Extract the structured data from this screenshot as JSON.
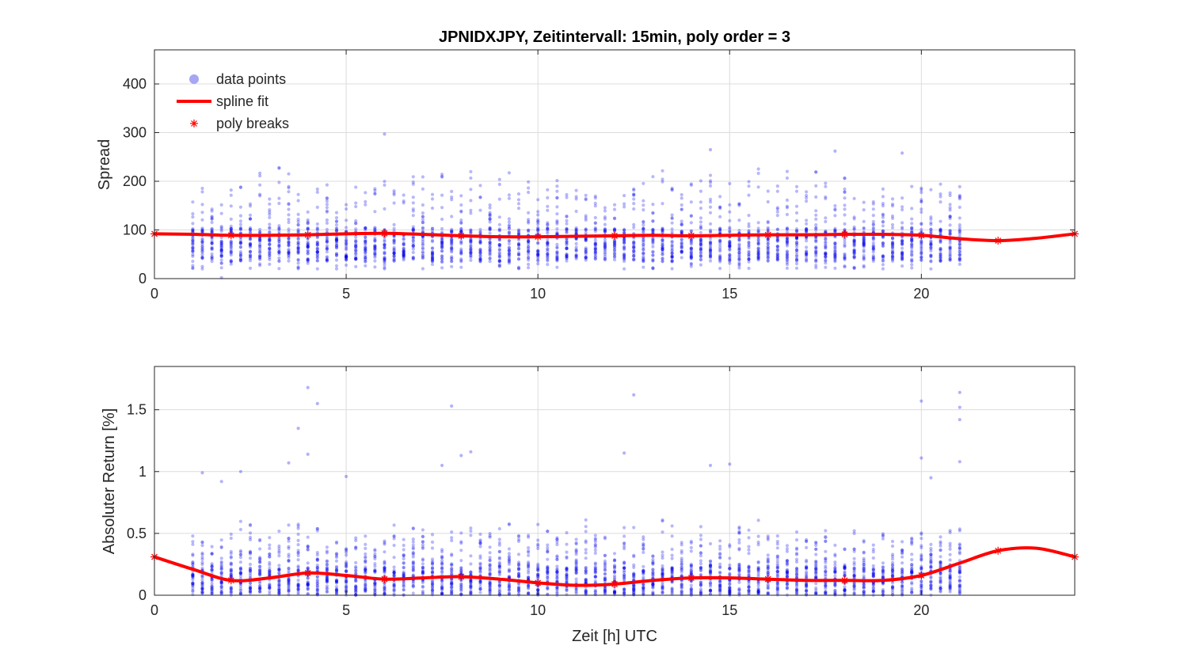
{
  "title": "JPNIDXJPY, Zeitintervall: 15min, poly order = 3",
  "colors": {
    "points": "#0000ee",
    "fit": "#ff0000",
    "grid": "#dcdcdc",
    "axis": "#262626"
  },
  "legend": {
    "placement": "top-left",
    "items": [
      {
        "label": "data points",
        "marker": "circle",
        "color": "#8080f0"
      },
      {
        "label": "spline fit",
        "marker": "line",
        "color": "#ff0000"
      },
      {
        "label": "poly breaks",
        "marker": "asterisk",
        "color": "#ff0000"
      }
    ]
  },
  "chart_data": [
    {
      "type": "scatter",
      "name": "top",
      "xlabel": "",
      "ylabel": "Spread",
      "xlim": [
        0,
        24
      ],
      "ylim": [
        0,
        470
      ],
      "xticks": [
        0,
        5,
        10,
        15,
        20
      ],
      "yticks": [
        0,
        100,
        200,
        300,
        400
      ],
      "ytick_labels": [
        "0",
        "100",
        "200",
        "300",
        "400"
      ],
      "grid": true,
      "scatter": {
        "x_start": 1,
        "x_end": 21,
        "x_step": 0.25,
        "dense": [
          35,
          105
        ],
        "typical_max": [
          170,
          235
        ],
        "outliers": [
          {
            "x": 1.75,
            "y": 2
          },
          {
            "x": 6,
            "y": 297
          },
          {
            "x": 14.5,
            "y": 265
          },
          {
            "x": 17.75,
            "y": 262
          },
          {
            "x": 19.5,
            "y": 258
          }
        ]
      },
      "fit": {
        "x": [
          0,
          1,
          2,
          3,
          4,
          5,
          6,
          7,
          8,
          9,
          10,
          11,
          12,
          13,
          14,
          15,
          16,
          17,
          18,
          19,
          20,
          21,
          22,
          23,
          24
        ],
        "y": [
          92,
          91,
          89,
          89,
          90,
          92,
          93,
          91,
          88,
          86,
          86,
          87,
          88,
          89,
          88,
          89,
          90,
          90,
          91,
          91,
          89,
          82,
          78,
          83,
          92
        ]
      },
      "breaks": {
        "x": [
          0,
          2,
          4,
          6,
          8,
          10,
          12,
          14,
          16,
          18,
          20,
          22,
          24
        ],
        "y": [
          92,
          89,
          90,
          93,
          88,
          86,
          88,
          88,
          90,
          91,
          89,
          78,
          92
        ]
      }
    },
    {
      "type": "scatter",
      "name": "bottom",
      "xlabel": "Zeit [h] UTC",
      "ylabel": "Absoluter Return [%]",
      "xlim": [
        0,
        24
      ],
      "ylim": [
        0,
        1.85
      ],
      "xticks": [
        0,
        5,
        10,
        15,
        20
      ],
      "yticks": [
        0,
        0.5,
        1,
        1.5
      ],
      "ytick_labels": [
        "0",
        "0.5",
        "1",
        "1.5"
      ],
      "grid": true,
      "scatter": {
        "x_start": 1,
        "x_end": 21,
        "x_step": 0.25,
        "dense": [
          0.0,
          0.22
        ],
        "typical_max": [
          0.42,
          0.62
        ],
        "outliers": [
          {
            "x": 1.25,
            "y": 0.99
          },
          {
            "x": 1.75,
            "y": 0.92
          },
          {
            "x": 2.25,
            "y": 1.0
          },
          {
            "x": 3.5,
            "y": 1.07
          },
          {
            "x": 3.75,
            "y": 1.35
          },
          {
            "x": 4,
            "y": 1.68
          },
          {
            "x": 4,
            "y": 1.14
          },
          {
            "x": 4.25,
            "y": 1.55
          },
          {
            "x": 5,
            "y": 0.96
          },
          {
            "x": 7.5,
            "y": 1.05
          },
          {
            "x": 7.75,
            "y": 1.53
          },
          {
            "x": 8,
            "y": 1.13
          },
          {
            "x": 8.25,
            "y": 1.16
          },
          {
            "x": 12.25,
            "y": 1.15
          },
          {
            "x": 12.5,
            "y": 1.62
          },
          {
            "x": 14.5,
            "y": 1.05
          },
          {
            "x": 15,
            "y": 1.06
          },
          {
            "x": 20,
            "y": 1.57
          },
          {
            "x": 20,
            "y": 1.11
          },
          {
            "x": 20.25,
            "y": 0.95
          },
          {
            "x": 21,
            "y": 1.64
          },
          {
            "x": 21,
            "y": 1.52
          },
          {
            "x": 21,
            "y": 1.42
          },
          {
            "x": 21,
            "y": 1.08
          }
        ]
      },
      "fit": {
        "x": [
          0,
          1,
          2,
          3,
          4,
          5,
          6,
          7,
          8,
          9,
          10,
          11,
          12,
          13,
          14,
          15,
          16,
          17,
          18,
          19,
          20,
          21,
          22,
          23,
          24
        ],
        "y": [
          0.31,
          0.21,
          0.12,
          0.14,
          0.18,
          0.16,
          0.13,
          0.14,
          0.15,
          0.13,
          0.1,
          0.08,
          0.09,
          0.12,
          0.14,
          0.14,
          0.13,
          0.12,
          0.12,
          0.12,
          0.16,
          0.26,
          0.36,
          0.38,
          0.31
        ]
      },
      "breaks": {
        "x": [
          0,
          2,
          4,
          6,
          8,
          10,
          12,
          14,
          16,
          18,
          20,
          22,
          24
        ],
        "y": [
          0.31,
          0.12,
          0.18,
          0.13,
          0.15,
          0.1,
          0.09,
          0.14,
          0.13,
          0.12,
          0.16,
          0.36,
          0.31
        ]
      }
    }
  ]
}
